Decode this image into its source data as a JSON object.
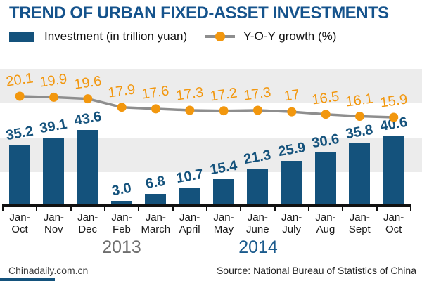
{
  "title": "TREND OF URBAN FIXED-ASSET INVESTMENTS",
  "legend": {
    "investment_label": "Investment (in trillion yuan)",
    "growth_label": "Y-O-Y growth (%)"
  },
  "chart_data": {
    "type": "bar",
    "categories": [
      "Jan-Oct",
      "Jan-Nov",
      "Jan-Dec",
      "Jan-Feb",
      "Jan-March",
      "Jan-April",
      "Jan-May",
      "Jan-June",
      "Jan-July",
      "Jan-Aug",
      "Jan-Sept",
      "Jan-Oct"
    ],
    "category_lines": [
      [
        "Jan-",
        "Oct"
      ],
      [
        "Jan-",
        "Nov"
      ],
      [
        "Jan-",
        "Dec"
      ],
      [
        "Jan-",
        "Feb"
      ],
      [
        "Jan-",
        "March"
      ],
      [
        "Jan-",
        "April"
      ],
      [
        "Jan-",
        "May"
      ],
      [
        "Jan-",
        "June"
      ],
      [
        "Jan-",
        "July"
      ],
      [
        "Jan-",
        "Aug"
      ],
      [
        "Jan-",
        "Sept"
      ],
      [
        "Jan-",
        "Oct"
      ]
    ],
    "series": [
      {
        "name": "Investment (in trillion yuan)",
        "type": "bar",
        "values": [
          35.2,
          39.1,
          43.6,
          3.0,
          6.8,
          10.7,
          15.4,
          21.3,
          25.9,
          30.6,
          35.8,
          40.6
        ],
        "labels": [
          "35.2",
          "39.1",
          "43.6",
          "3.0",
          "6.8",
          "10.7",
          "15.4",
          "21.3",
          "25.9",
          "30.6",
          "35.8",
          "40.6"
        ],
        "color": "#14527C"
      },
      {
        "name": "Y-O-Y growth (%)",
        "type": "line",
        "values": [
          20.1,
          19.9,
          19.6,
          17.9,
          17.6,
          17.3,
          17.2,
          17.3,
          17,
          16.5,
          16.1,
          15.9
        ],
        "labels": [
          "20.1",
          "19.9",
          "19.6",
          "17.9",
          "17.6",
          "17.3",
          "17.2",
          "17.3",
          "17",
          "16.5",
          "16.1",
          "15.9"
        ],
        "line_color": "#8E8E8E",
        "marker_color": "#F2970E"
      }
    ],
    "year_groups": [
      {
        "label": "2013",
        "color": "#6E6E6E"
      },
      {
        "label": "2014",
        "color": "#1A5A8C"
      }
    ],
    "grid": "horizontal gray bands",
    "legend_position": "top"
  },
  "footer": {
    "left": "Chinadaily.com.cn",
    "right": "Source: National Bureau of Statistics of China"
  },
  "colors": {
    "title": "#15538C",
    "bar": "#14527C",
    "band": "#ECECEC",
    "line": "#8E8E8E",
    "marker": "#F2970E",
    "axis": "#111111"
  }
}
